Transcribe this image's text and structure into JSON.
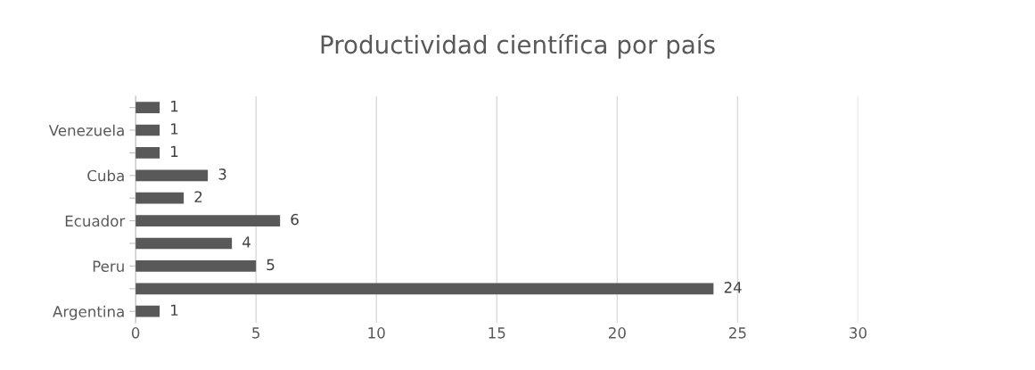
{
  "chart_data": {
    "type": "bar",
    "orientation": "horizontal",
    "title": "Productividad científica por país",
    "categories": [
      null,
      "Venezuela",
      null,
      "Cuba",
      null,
      "Ecuador",
      null,
      "Peru",
      null,
      "Argentina"
    ],
    "values": [
      1,
      1,
      1,
      3,
      2,
      6,
      4,
      5,
      24,
      1
    ],
    "color": "#595959",
    "xlim": [
      0,
      30
    ],
    "xticks": [
      0,
      5,
      10,
      15,
      20,
      25,
      30
    ],
    "grid": "x",
    "data_labels": true,
    "legend": false
  }
}
